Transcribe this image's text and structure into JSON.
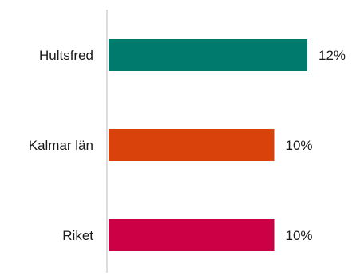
{
  "chart_data": {
    "type": "bar",
    "orientation": "horizontal",
    "title": "",
    "xlabel": "",
    "ylabel": "",
    "categories": [
      "Hultsfred",
      "Kalmar län",
      "Riket"
    ],
    "values": [
      12,
      10,
      10
    ],
    "value_labels": [
      "12%",
      "10%",
      "10%"
    ],
    "colors": [
      "#007a6c",
      "#d9420b",
      "#cc0044"
    ],
    "axis_color": "#d0d0d0",
    "xlim": [
      0,
      12.3
    ],
    "grid": false,
    "legend": "none"
  }
}
